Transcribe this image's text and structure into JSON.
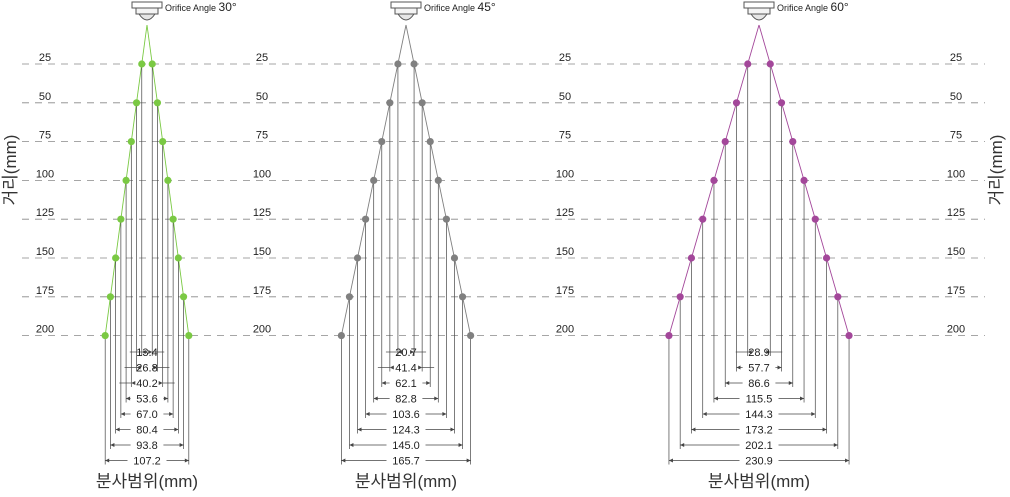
{
  "axis": {
    "ylabel": "거리(mm)",
    "xlabel": "분사범위(mm)",
    "distance_ticks": [
      "25",
      "50",
      "75",
      "100",
      "125",
      "150",
      "175",
      "200"
    ]
  },
  "chart_data": {
    "type": "diagram",
    "distances": [
      25,
      50,
      75,
      100,
      125,
      150,
      175,
      200
    ],
    "diagrams": [
      {
        "label_prefix": "Orifice Angle",
        "angle": "30°",
        "color": "#7ac943",
        "widths": [
          "13.4",
          "26.8",
          "40.2",
          "53.6",
          "67.0",
          "80.4",
          "93.8",
          "107.2"
        ]
      },
      {
        "label_prefix": "Orifice Angle",
        "angle": "45°",
        "color": "#808080",
        "widths": [
          "20.7",
          "41.4",
          "62.1",
          "82.8",
          "103.6",
          "124.3",
          "145.0",
          "165.7"
        ]
      },
      {
        "label_prefix": "Orifice Angle",
        "angle": "60°",
        "color": "#a3479a",
        "widths": [
          "28.9",
          "57.7",
          "86.6",
          "115.5",
          "144.3",
          "173.2",
          "202.1",
          "230.9"
        ]
      }
    ]
  }
}
